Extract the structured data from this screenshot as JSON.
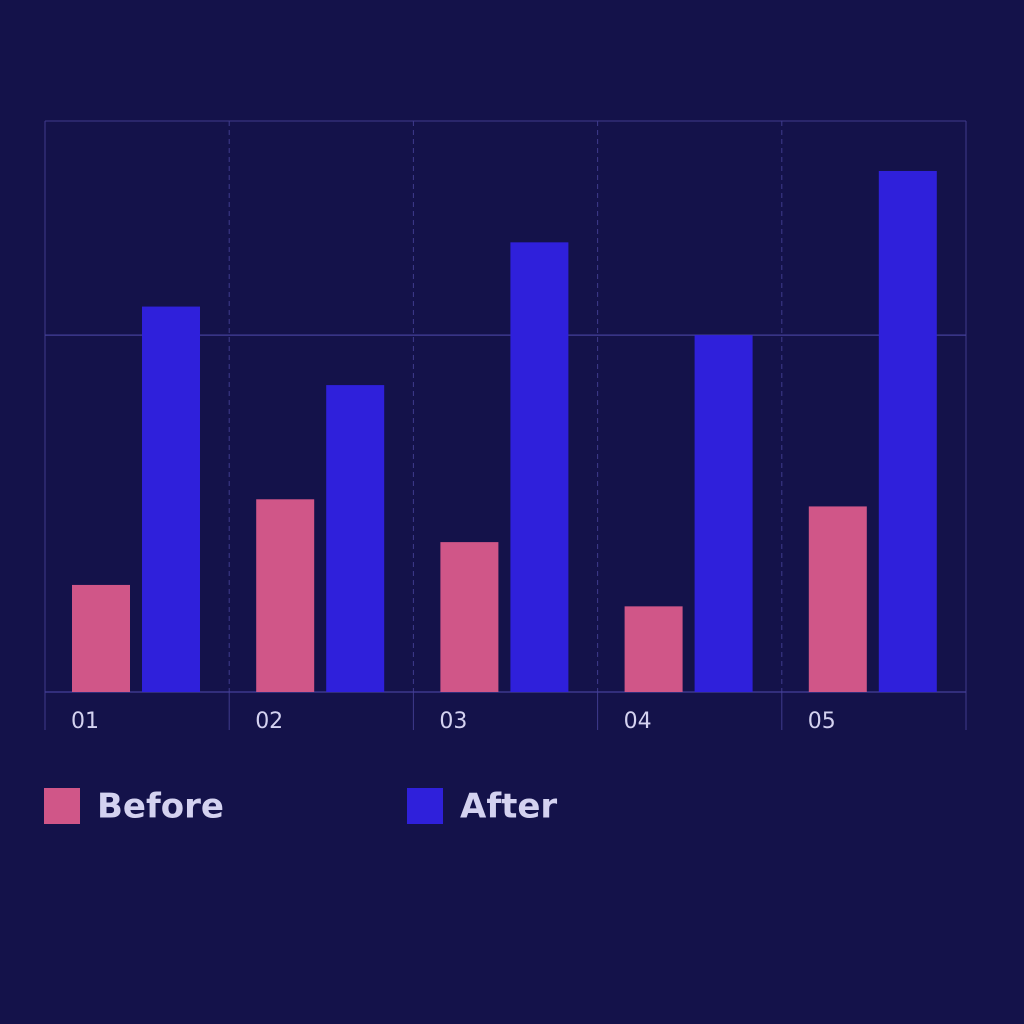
{
  "chart_data": {
    "type": "bar",
    "categories": [
      "01",
      "02",
      "03",
      "04",
      "05"
    ],
    "series": [
      {
        "name": "Before",
        "color": "#d05688",
        "values": [
          1.5,
          2.7,
          2.1,
          1.2,
          2.6
        ]
      },
      {
        "name": "After",
        "color": "#2f20db",
        "values": [
          5.4,
          4.3,
          6.3,
          5.0,
          7.3
        ]
      }
    ],
    "ylim": [
      0,
      8
    ],
    "yticks": [
      0,
      5
    ],
    "grid": true,
    "legend": "bottom-left"
  }
}
